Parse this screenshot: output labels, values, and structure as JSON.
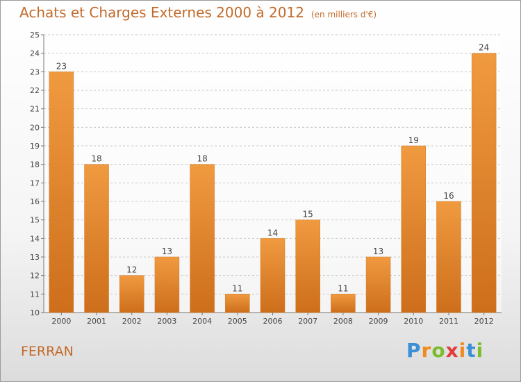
{
  "chart_data": {
    "type": "bar",
    "title": "Achats et Charges Externes 2000 à 2012",
    "subtitle": "(en milliers d'€)",
    "xlabel": "",
    "ylabel": "",
    "categories": [
      "2000",
      "2001",
      "2002",
      "2003",
      "2004",
      "2005",
      "2006",
      "2007",
      "2008",
      "2009",
      "2010",
      "2011",
      "2012"
    ],
    "values": [
      23,
      18,
      12,
      13,
      18,
      11,
      14,
      15,
      11,
      13,
      19,
      16,
      24
    ],
    "ylim": [
      10,
      25
    ],
    "yticks": [
      10,
      11,
      12,
      13,
      14,
      15,
      16,
      17,
      18,
      19,
      20,
      21,
      22,
      23,
      24,
      25
    ],
    "grid": true,
    "bar_color": "#f09a40",
    "bar_color_dark": "#cd6e1b",
    "text_color": "#c26a2a"
  },
  "footer": {
    "commune": "FERRAN",
    "brand_letters": [
      "P",
      "r",
      "o",
      "x",
      "i",
      "t",
      "i"
    ],
    "brand_colors": [
      "#3a8fd6",
      "#f08a1c",
      "#7cbd2c",
      "#e33b3b",
      "#f08a1c",
      "#3a8fd6",
      "#7cbd2c"
    ]
  }
}
